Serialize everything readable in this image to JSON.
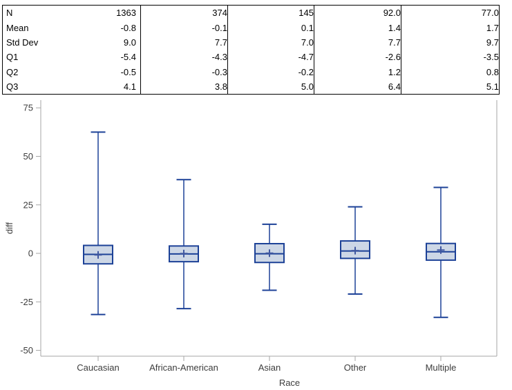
{
  "table": {
    "rows": [
      {
        "label": "N",
        "values": [
          "1363",
          "374",
          "145",
          "92.0",
          "77.0"
        ]
      },
      {
        "label": "Mean",
        "values": [
          "-0.8",
          "-0.1",
          "0.1",
          "1.4",
          "1.7"
        ]
      },
      {
        "label": "Std Dev",
        "values": [
          "9.0",
          "7.7",
          "7.0",
          "7.7",
          "9.7"
        ]
      },
      {
        "label": "Q1",
        "values": [
          "-5.4",
          "-4.3",
          "-4.7",
          "-2.6",
          "-3.5"
        ]
      },
      {
        "label": "Q2",
        "values": [
          "-0.5",
          "-0.3",
          "-0.2",
          "1.2",
          "0.8"
        ]
      },
      {
        "label": "Q3",
        "values": [
          "4.1",
          "3.8",
          "5.0",
          "6.4",
          "5.1"
        ]
      }
    ]
  },
  "chart_data": {
    "type": "boxplot",
    "title": "",
    "xlabel": "Race",
    "ylabel": "diff",
    "categories": [
      "Caucasian",
      "African-American",
      "Asian",
      "Other",
      "Multiple"
    ],
    "yticks": [
      75,
      50,
      25,
      0,
      -25,
      -50
    ],
    "ylim": [
      -53,
      79
    ],
    "grid": false,
    "legend": "none",
    "series": [
      {
        "category": "Caucasian",
        "n": 1363,
        "mean": -0.8,
        "std_dev": 9.0,
        "q1": -5.4,
        "median": -0.5,
        "q3": 4.1,
        "whisker_low": -31.5,
        "whisker_high": 62.5
      },
      {
        "category": "African-American",
        "n": 374,
        "mean": -0.1,
        "std_dev": 7.7,
        "q1": -4.3,
        "median": -0.3,
        "q3": 3.8,
        "whisker_low": -28.5,
        "whisker_high": 38
      },
      {
        "category": "Asian",
        "n": 145,
        "mean": 0.1,
        "std_dev": 7.0,
        "q1": -4.7,
        "median": -0.2,
        "q3": 5.0,
        "whisker_low": -19,
        "whisker_high": 15
      },
      {
        "category": "Other",
        "n": 92.0,
        "mean": 1.4,
        "std_dev": 7.7,
        "q1": -2.6,
        "median": 1.2,
        "q3": 6.4,
        "whisker_low": -21,
        "whisker_high": 24
      },
      {
        "category": "Multiple",
        "n": 77.0,
        "mean": 1.7,
        "std_dev": 9.7,
        "q1": -3.5,
        "median": 0.8,
        "q3": 5.1,
        "whisker_low": -33,
        "whisker_high": 34
      }
    ],
    "colors": {
      "box_fill": "#cdd7e6",
      "box_stroke": "#1c4197",
      "mean_marker": "#3f57a0",
      "axis_line": "#a6a6a6",
      "tick_text": "#3c3c3c",
      "table_text": "#000000"
    }
  }
}
